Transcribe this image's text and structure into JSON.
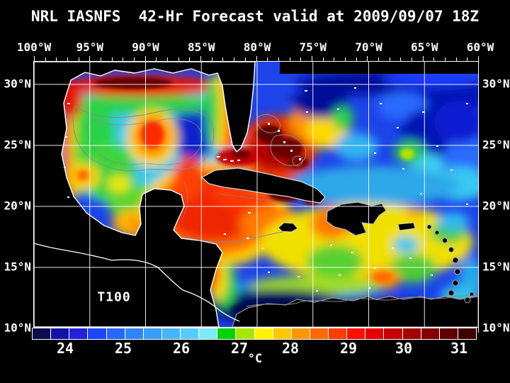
{
  "title": "NRL IASNFS  42-Hr Forecast valid at 2009/09/07 18Z",
  "map": {
    "field_label": "T100",
    "description": "Temperature at 100 m depth over the Gulf of Mexico and Caribbean Sea; land and out-of-domain areas masked black"
  },
  "axes": {
    "top_labels": [
      "100°W",
      "95°W",
      "90°W",
      "85°W",
      "80°W",
      "75°W",
      "70°W",
      "65°W",
      "60°W"
    ],
    "left_labels": [
      "30°N",
      "25°N",
      "20°N",
      "15°N",
      "10°N"
    ],
    "right_labels": [
      "30°N",
      "25°N",
      "20°N",
      "15°N",
      "10°N"
    ]
  },
  "colorbar": {
    "tick_labels": [
      "24",
      "25",
      "26",
      "27",
      "28",
      "29",
      "30",
      "31"
    ],
    "unit_label": "°C",
    "segment_colors": [
      "#0d0d4d",
      "#1212a8",
      "#2222dd",
      "#1c46ff",
      "#2567ff",
      "#2e86ff",
      "#379fff",
      "#41b6ff",
      "#55ccff",
      "#7deaff",
      "#00d400",
      "#a6e600",
      "#fff200",
      "#ffc800",
      "#ff9500",
      "#ff6a00",
      "#ff3c00",
      "#ff0f00",
      "#e60000",
      "#c80000",
      "#a50000",
      "#820000",
      "#5f0000",
      "#3c0000"
    ]
  },
  "chart_data": {
    "type": "heatmap",
    "title": "NRL IASNFS  42-Hr Forecast valid at 2009/09/07 18Z",
    "field": "T100",
    "x_axis": {
      "tick_labels": [
        "100°W",
        "95°W",
        "90°W",
        "85°W",
        "80°W",
        "75°W",
        "70°W",
        "65°W",
        "60°W"
      ],
      "direction": "longitude west"
    },
    "y_axis": {
      "tick_labels": [
        "30°N",
        "25°N",
        "20°N",
        "15°N",
        "10°N"
      ],
      "direction": "latitude north"
    },
    "colorbar": {
      "tick_values": [
        24,
        25,
        26,
        27,
        28,
        29,
        30,
        31
      ],
      "unit": "°C",
      "n_segments": 24
    },
    "grid": "5-degree white graticule",
    "notable_features": [
      "warm red band (29-30°C) along northern Gulf of Mexico shelf",
      "warm Loop Current eddy (~29°C) in central Gulf near 87°W 27°N",
      "very warm (30-31°C) water over the Bahamas banks and Florida Straits",
      "broad 28-29°C pool in NW Caribbean between Yucatan and Cuba",
      "cool dark-blue upwelling (<24°C) along Venezuela-Colombia coast near 12°N",
      "cool blue subtropical Atlantic (24-25°C) northeast of the Bahamas"
    ]
  }
}
